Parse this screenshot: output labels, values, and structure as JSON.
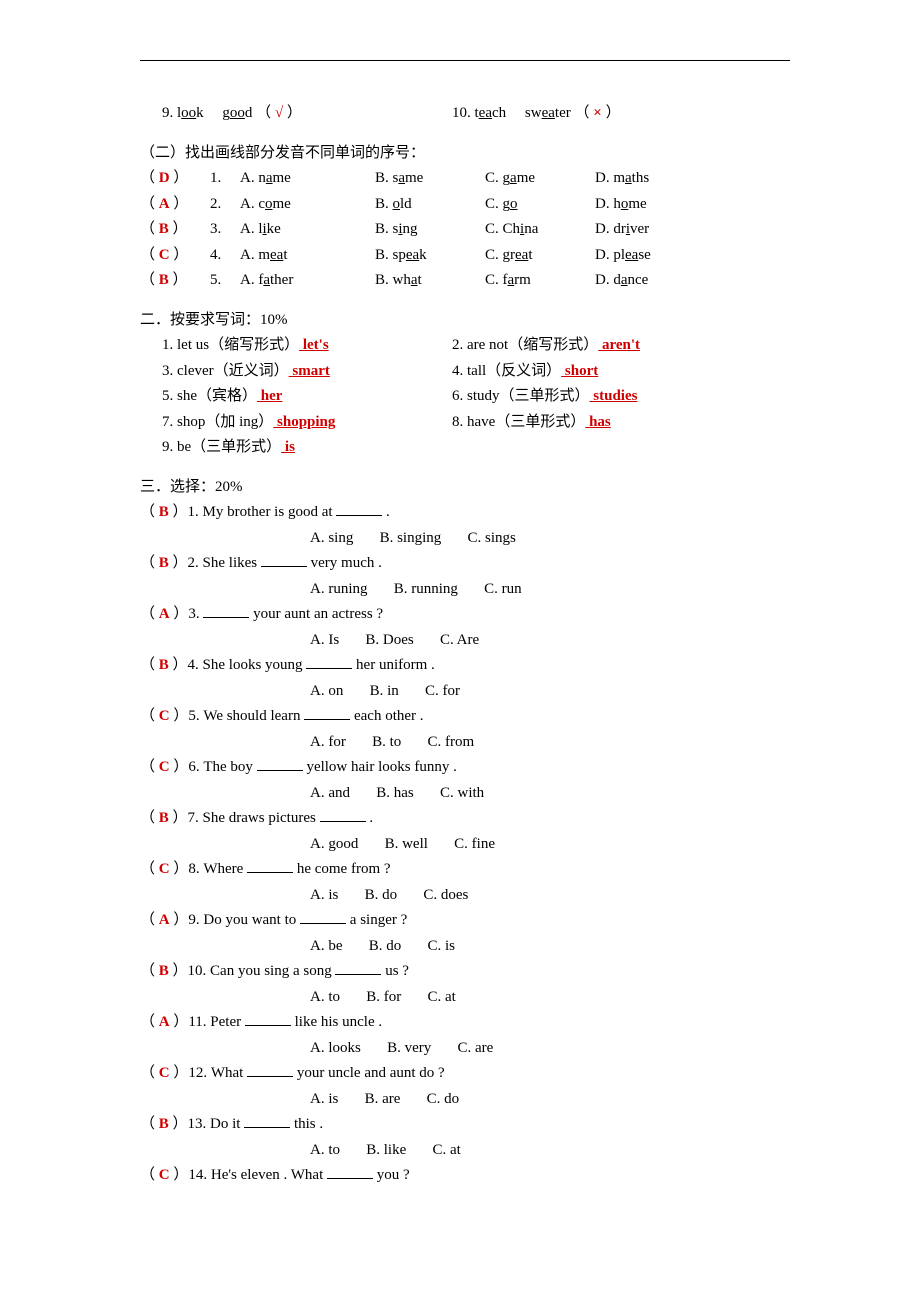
{
  "top": {
    "q9_num": "9.",
    "q9_w1": "look",
    "q9_w2": "good",
    "q9_mark": "√",
    "q10_num": "10.",
    "q10_w1": "teach",
    "q10_w2": "sweater",
    "q10_mark": "×"
  },
  "sec1b": {
    "title": "（二）找出画线部分发音不同单词的序号：",
    "rows": [
      {
        "ans": "D",
        "n": "1.",
        "a": "A. name",
        "b": "B. same",
        "c": "C. game",
        "d": "D. maths",
        "ua": "a",
        "ub": "a",
        "uc": "a",
        "ud": "a"
      },
      {
        "ans": "A",
        "n": "2.",
        "a": "A. come",
        "b": "B. old",
        "c": "C. go",
        "d": "D. home",
        "ua": "o",
        "ub": "o",
        "uc": "o",
        "ud": "o"
      },
      {
        "ans": "B",
        "n": "3.",
        "a": "A. like",
        "b": "B. sing",
        "c": "C. China",
        "d": "D. driver",
        "ua": "i",
        "ub": "i",
        "uc": "i",
        "ud": "i"
      },
      {
        "ans": "C",
        "n": "4.",
        "a": "A. meat",
        "b": "B. speak",
        "c": "C. great",
        "d": "D. please",
        "ua": "ea",
        "ub": "ea",
        "uc": "ea",
        "ud": "ea"
      },
      {
        "ans": "B",
        "n": "5.",
        "a": "A. father",
        "b": "B. what",
        "c": "C. farm",
        "d": "D. dance",
        "ua": "a",
        "ub": "a",
        "uc": "a",
        "ud": "a"
      }
    ]
  },
  "sec2": {
    "title": "二．按要求写词：10%",
    "rows": [
      {
        "l_n": "1.",
        "l_t": "let us（缩写形式）",
        "l_a": " let's ",
        "r_n": "2.",
        "r_t": "are not（缩写形式）",
        "r_a": " aren't "
      },
      {
        "l_n": "3.",
        "l_t": "clever（近义词）",
        "l_a": " smart ",
        "r_n": "4.",
        "r_t": "tall（反义词）",
        "r_a": " short "
      },
      {
        "l_n": "5.",
        "l_t": "she（宾格）",
        "l_a": " her ",
        "r_n": "6.",
        "r_t": "study（三单形式）",
        "r_a": " studies "
      },
      {
        "l_n": "7.",
        "l_t": "shop（加 ing）",
        "l_a": " shopping ",
        "r_n": "8.",
        "r_t": "have（三单形式）",
        "r_a": " has "
      },
      {
        "l_n": "9.",
        "l_t": "be（三单形式）",
        "l_a": " is "
      }
    ]
  },
  "sec3": {
    "title": "三．选择：20%",
    "items": [
      {
        "ans": "B",
        "n": "1.",
        "q_pre": "My brother is good at ",
        "q_post": " .",
        "opts": "A. sing       B. singing       C. sings"
      },
      {
        "ans": "B",
        "n": "2.",
        "q_pre": "She likes ",
        "q_post": " very much .",
        "opts": "A. runing       B. running       C. run"
      },
      {
        "ans": "A",
        "n": "3.",
        "q_pre": "",
        "q_post": " your aunt an actress ?",
        "opts": "A. Is       B. Does       C. Are"
      },
      {
        "ans": "B",
        "n": "4.",
        "q_pre": "She looks young ",
        "q_post": " her uniform .",
        "opts": "A. on       B. in       C. for"
      },
      {
        "ans": "C",
        "n": "5.",
        "q_pre": "We should learn ",
        "q_post": " each other .",
        "opts": "A. for       B. to       C. from"
      },
      {
        "ans": "C",
        "n": "6.",
        "q_pre": "The boy ",
        "q_post": " yellow hair looks funny .",
        "opts": "A. and       B. has       C. with"
      },
      {
        "ans": "B",
        "n": "7.",
        "q_pre": "She draws pictures ",
        "q_post": " .",
        "opts": "A. good       B. well       C. fine"
      },
      {
        "ans": "C",
        "n": "8.",
        "q_pre": "Where ",
        "q_post": " he come from ?",
        "opts": "A. is       B. do       C. does"
      },
      {
        "ans": "A",
        "n": "9.",
        "q_pre": "Do you want to ",
        "q_post": " a singer ?",
        "opts": "A. be       B. do       C. is"
      },
      {
        "ans": "B",
        "n": "10.",
        "q_pre": "Can you sing a song ",
        "q_post": " us ?",
        "opts": "A. to       B. for       C. at"
      },
      {
        "ans": "A",
        "n": "11.",
        "q_pre": "Peter ",
        "q_post": " like his uncle .",
        "opts": "A. looks       B. very       C. are"
      },
      {
        "ans": "C",
        "n": "12.",
        "q_pre": "What ",
        "q_post": " your uncle and aunt do ?",
        "opts": "A. is       B. are       C. do"
      },
      {
        "ans": "B",
        "n": "13.",
        "q_pre": "Do it ",
        "q_post": " this .",
        "opts": "A. to       B. like       C. at"
      },
      {
        "ans": "C",
        "n": "14.",
        "q_pre": "He's eleven . What ",
        "q_post": " you ?",
        "opts": ""
      }
    ]
  }
}
